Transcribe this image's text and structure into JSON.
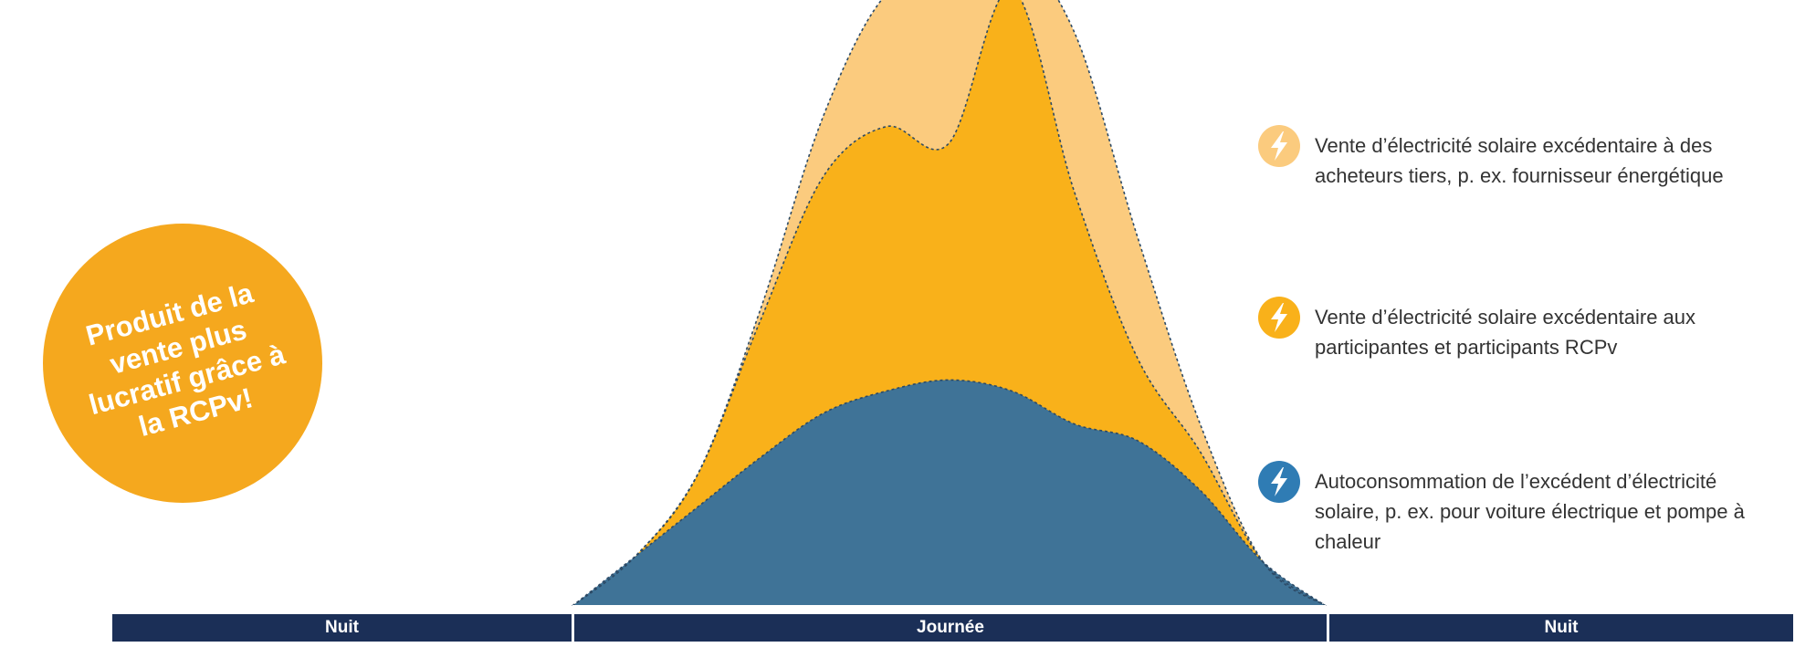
{
  "colors": {
    "surplus_third_party": "#FBCB7E",
    "surplus_rcpv": "#F9B11A",
    "self_consumption": "#3F7397",
    "badge": "#F5A81E",
    "timebar": "#1B2F57",
    "dash": "#2C4A66"
  },
  "badge": {
    "text": "Produit de la vente plus lucratif grâce à la RCPv!"
  },
  "legend": [
    {
      "icon": "lightning-icon",
      "color": "#FBCB7E",
      "text": "Vente d’électricité solaire excédentaire à des acheteurs tiers, p. ex. fournisseur énergétique"
    },
    {
      "icon": "lightning-icon",
      "color": "#F9B11A",
      "text": "Vente d’électricité solaire excédentaire aux participantes et participants RCPv"
    },
    {
      "icon": "lightning-icon",
      "color": "#2F7CB4",
      "text": "Autoconsommation de l’excédent d’électricité solaire, p. ex. pour voiture électrique et pompe à chaleur"
    }
  ],
  "timeline": {
    "night_left": "Nuit",
    "day": "Journée",
    "night_right": "Nuit"
  },
  "chart_data": {
    "type": "area",
    "title": "",
    "x_label": "",
    "y_label": "",
    "x": [
      0,
      1,
      2,
      3,
      4,
      5,
      6,
      7,
      8,
      9,
      10,
      11,
      12
    ],
    "series": [
      {
        "name": "Autoconsommation de l’excédent d’électricité solaire",
        "values": [
          0,
          0.45,
          0.9,
          1.35,
          1.75,
          1.95,
          2.05,
          1.95,
          1.65,
          1.5,
          1.05,
          0.4,
          0
        ]
      },
      {
        "name": "Vente d’électricité solaire excédentaire aux participantes et participants RCPv",
        "values": [
          0,
          0,
          0.3,
          1.25,
          2.15,
          2.4,
          2.15,
          3.65,
          2.1,
          0.75,
          0.35,
          0,
          0
        ]
      },
      {
        "name": "Vente d’électricité solaire excédentaire à des acheteurs tiers",
        "values": [
          0,
          0,
          0,
          0.1,
          0.55,
          1.2,
          1.5,
          0.35,
          1.45,
          1.1,
          0.25,
          0,
          0
        ]
      }
    ],
    "ylim": [
      0,
      5.2
    ]
  }
}
